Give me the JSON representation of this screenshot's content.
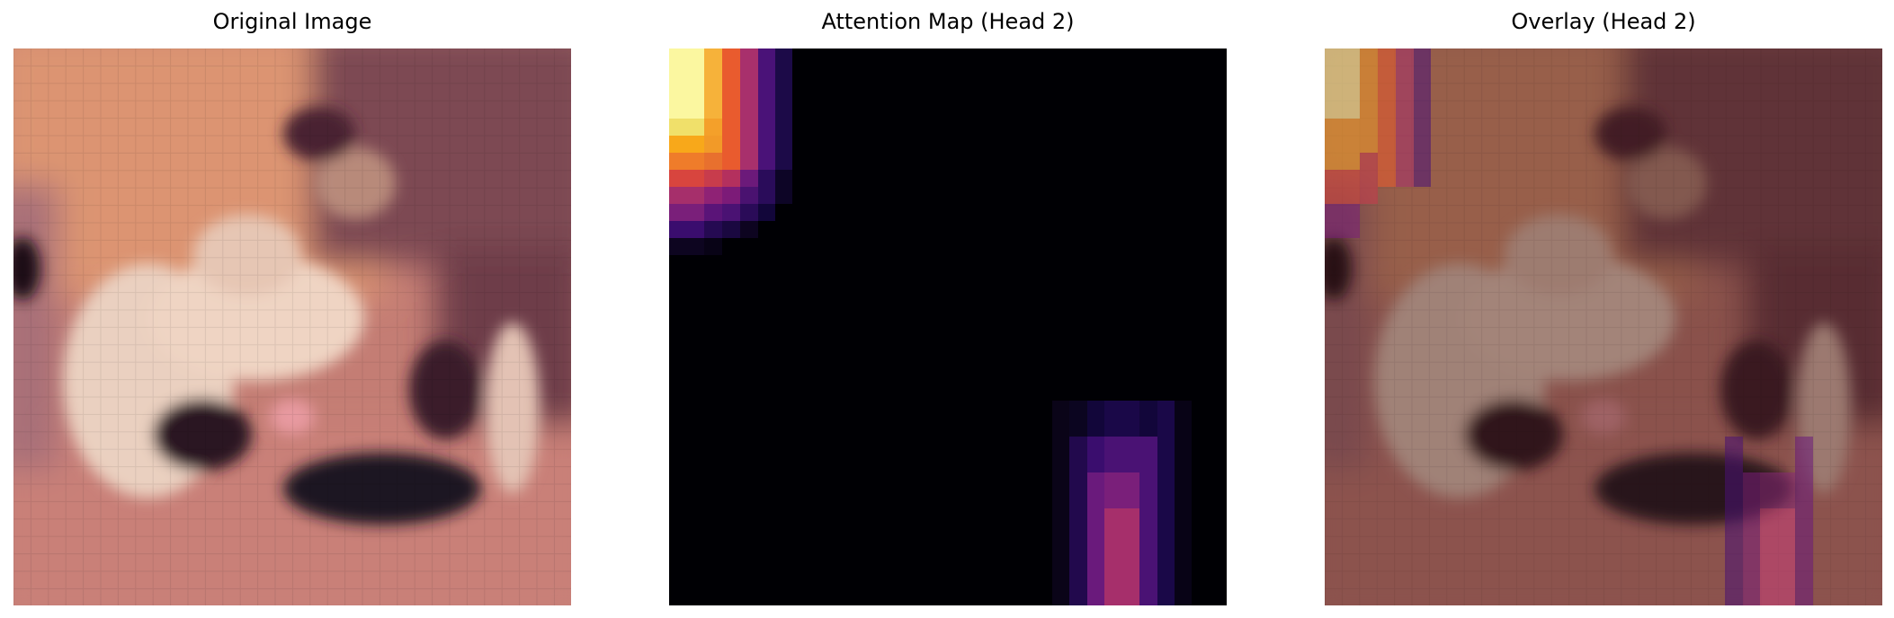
{
  "panels": [
    {
      "title": "Original Image"
    },
    {
      "title": "Attention Map (Head 2)"
    },
    {
      "title": "Overlay (Head 2)"
    }
  ],
  "palette": {
    "original": {
      "rose": "#c98277",
      "peach": "#dc9270",
      "cream": "#e9cdbd",
      "plum": "#6b3942",
      "dark": "#1c1020",
      "pink": "#e39a9a"
    },
    "attention": {
      "background": "#000004",
      "hot_yellow": "#fbf7a0",
      "orange": "#f3862b",
      "magenta": "#a62f6b",
      "violet": "#3a0d6e"
    },
    "overlay_tint": "#3a1512"
  }
}
